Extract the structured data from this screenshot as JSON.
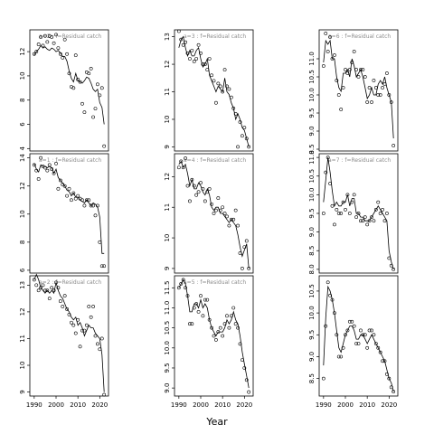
{
  "figure": {
    "xlabel": "Year"
  },
  "chart_data": [
    {
      "type": "line",
      "title": "a=2  :  f=Residual catch",
      "xlim": [
        1988,
        2024
      ],
      "ylim": [
        3.8,
        13.8
      ],
      "yticks": [
        4,
        6,
        8,
        10,
        12
      ],
      "x": [
        1990,
        1991,
        1992,
        1993,
        1994,
        1995,
        1996,
        1997,
        1998,
        1999,
        2000,
        2001,
        2002,
        2003,
        2004,
        2005,
        2006,
        2007,
        2008,
        2009,
        2010,
        2011,
        2012,
        2013,
        2014,
        2015,
        2016,
        2017,
        2018,
        2019,
        2020,
        2021,
        2022
      ],
      "observed": [
        11.8,
        12.0,
        12.6,
        13.2,
        12.5,
        13.3,
        12.8,
        13.3,
        13.2,
        12.7,
        13.4,
        12.3,
        11.8,
        11.5,
        13.0,
        11.8,
        10.2,
        9.1,
        9.0,
        11.7,
        9.7,
        9.5,
        7.7,
        7.0,
        10.3,
        10.2,
        10.6,
        6.6,
        7.3,
        9.3,
        8.4,
        9.0,
        4.2
      ],
      "fitted": [
        11.7,
        12.0,
        12.2,
        12.5,
        12.3,
        12.4,
        12.2,
        12.1,
        12.3,
        12.2,
        12.0,
        12.1,
        11.9,
        11.6,
        11.6,
        11.2,
        10.4,
        9.8,
        9.5,
        10.2,
        9.6,
        9.5,
        9.4,
        9.6,
        9.9,
        9.8,
        9.4,
        8.9,
        8.7,
        8.9,
        7.8,
        7.4,
        6.0
      ]
    },
    {
      "type": "line",
      "title": "a=3  :  f=Residual catch",
      "xlim": [
        1988,
        2024
      ],
      "ylim": [
        8.85,
        13.25
      ],
      "yticks": [
        9,
        10,
        11,
        12,
        13
      ],
      "x": [
        1990,
        1991,
        1992,
        1993,
        1994,
        1995,
        1996,
        1997,
        1998,
        1999,
        2000,
        2001,
        2002,
        2003,
        2004,
        2005,
        2006,
        2007,
        2008,
        2009,
        2010,
        2011,
        2012,
        2013,
        2014,
        2015,
        2016,
        2017,
        2018,
        2019,
        2020,
        2021,
        2022
      ],
      "observed": [
        13.2,
        12.9,
        12.7,
        12.8,
        12.4,
        12.2,
        12.5,
        12.1,
        12.2,
        12.7,
        12.4,
        12.0,
        12.0,
        11.8,
        12.2,
        11.6,
        11.4,
        10.6,
        11.3,
        11.2,
        11.0,
        11.8,
        11.2,
        11.1,
        10.8,
        10.4,
        10.2,
        9.0,
        9.9,
        9.4,
        9.7,
        9.3,
        9.0
      ],
      "fitted": [
        12.6,
        12.9,
        13.0,
        12.6,
        12.3,
        12.5,
        12.3,
        12.3,
        12.5,
        12.6,
        12.2,
        11.9,
        12.0,
        12.2,
        11.6,
        11.4,
        11.2,
        11.0,
        11.2,
        11.1,
        11.0,
        11.5,
        11.0,
        10.9,
        10.6,
        10.4,
        10.0,
        10.2,
        10.0,
        9.7,
        9.6,
        9.3,
        9.0
      ]
    },
    {
      "type": "line",
      "title": "a=6  :  f=Residual catch",
      "xlim": [
        1988,
        2024
      ],
      "ylim": [
        8.45,
        11.8
      ],
      "yticks": [
        8.5,
        9.0,
        9.5,
        10.0,
        10.5,
        11.0
      ],
      "x": [
        1990,
        1991,
        1992,
        1993,
        1994,
        1995,
        1996,
        1997,
        1998,
        1999,
        2000,
        2001,
        2002,
        2003,
        2004,
        2005,
        2006,
        2007,
        2008,
        2009,
        2010,
        2011,
        2012,
        2013,
        2014,
        2015,
        2016,
        2017,
        2018,
        2019,
        2020,
        2021,
        2022
      ],
      "observed": [
        10.8,
        11.7,
        11.2,
        11.6,
        11.0,
        11.1,
        10.4,
        10.0,
        9.6,
        10.2,
        10.7,
        10.6,
        10.7,
        10.9,
        11.2,
        10.7,
        10.5,
        10.7,
        10.7,
        10.5,
        9.8,
        10.2,
        9.8,
        10.4,
        10.2,
        10.0,
        10.0,
        10.2,
        10.3,
        10.6,
        10.0,
        9.8,
        8.6
      ],
      "fitted": [
        10.9,
        11.5,
        11.4,
        11.5,
        11.0,
        11.0,
        10.5,
        10.2,
        10.1,
        10.6,
        10.6,
        10.7,
        10.5,
        11.0,
        10.8,
        10.5,
        10.6,
        10.7,
        10.5,
        10.2,
        9.9,
        10.0,
        10.2,
        10.0,
        10.0,
        10.3,
        10.4,
        10.3,
        10.5,
        10.2,
        10.0,
        9.8,
        8.8
      ]
    },
    {
      "type": "line",
      "title": "a=1  :  f=Residual catch",
      "xlim": [
        1988,
        2024
      ],
      "ylim": [
        5.8,
        14.3
      ],
      "yticks": [
        6,
        8,
        10,
        12,
        14
      ],
      "x": [
        1990,
        1991,
        1992,
        1993,
        1994,
        1995,
        1996,
        1997,
        1998,
        1999,
        2000,
        2001,
        2002,
        2003,
        2004,
        2005,
        2006,
        2007,
        2008,
        2009,
        2010,
        2011,
        2012,
        2013,
        2014,
        2015,
        2016,
        2017,
        2018,
        2019,
        2020,
        2021,
        2022
      ],
      "observed": [
        13.5,
        13.1,
        12.5,
        14.0,
        13.4,
        13.3,
        13.1,
        13.5,
        13.2,
        12.9,
        13.6,
        11.8,
        12.4,
        12.1,
        12.0,
        11.3,
        11.8,
        11.0,
        11.5,
        11.1,
        11.3,
        11.1,
        11.0,
        10.6,
        11.0,
        11.0,
        10.6,
        10.6,
        9.9,
        10.6,
        8.0,
        6.3,
        6.3
      ],
      "fitted": [
        13.6,
        13.2,
        13.0,
        13.5,
        13.4,
        13.4,
        13.3,
        13.4,
        13.3,
        12.9,
        13.2,
        12.6,
        12.4,
        12.2,
        12.0,
        11.7,
        11.6,
        11.3,
        11.5,
        11.2,
        11.2,
        11.0,
        10.9,
        10.8,
        11.0,
        10.8,
        10.6,
        10.8,
        10.7,
        10.5,
        9.8,
        7.2,
        7.2
      ]
    },
    {
      "type": "line",
      "title": "a=4  :  f=Residual catch",
      "xlim": [
        1988,
        2024
      ],
      "ylim": [
        8.85,
        12.75
      ],
      "yticks": [
        9,
        10,
        11,
        12
      ],
      "x": [
        1990,
        1991,
        1992,
        1993,
        1994,
        1995,
        1996,
        1997,
        1998,
        1999,
        2000,
        2001,
        2002,
        2003,
        2004,
        2005,
        2006,
        2007,
        2008,
        2009,
        2010,
        2011,
        2012,
        2013,
        2014,
        2015,
        2016,
        2017,
        2018,
        2019,
        2020,
        2021,
        2022
      ],
      "observed": [
        12.3,
        12.5,
        12.3,
        12.6,
        11.7,
        11.2,
        11.9,
        11.7,
        11.4,
        11.5,
        11.8,
        11.6,
        11.2,
        11.5,
        11.6,
        11.1,
        10.8,
        10.9,
        11.3,
        10.9,
        11.0,
        10.8,
        10.7,
        10.4,
        10.6,
        10.6,
        10.9,
        10.4,
        9.5,
        9.0,
        9.7,
        9.9,
        9.0
      ],
      "fitted": [
        12.4,
        12.5,
        12.3,
        12.4,
        12.1,
        11.7,
        11.9,
        11.6,
        11.6,
        11.8,
        11.7,
        11.5,
        11.4,
        11.6,
        11.4,
        11.0,
        10.9,
        11.0,
        11.0,
        10.8,
        10.8,
        10.7,
        10.6,
        10.5,
        10.6,
        10.5,
        10.4,
        10.1,
        9.7,
        9.4,
        9.6,
        9.8,
        9.0
      ]
    },
    {
      "type": "line",
      "title": "a=7  :  f=Residual catch",
      "xlim": [
        1988,
        2024
      ],
      "ylim": [
        7.9,
        11.1
      ],
      "yticks": [
        8.0,
        8.5,
        9.0,
        9.5,
        10.0,
        10.5,
        11.0
      ],
      "x": [
        1990,
        1991,
        1992,
        1993,
        1994,
        1995,
        1996,
        1997,
        1998,
        1999,
        2000,
        2001,
        2002,
        2003,
        2004,
        2005,
        2006,
        2007,
        2008,
        2009,
        2010,
        2011,
        2012,
        2013,
        2014,
        2015,
        2016,
        2017,
        2018,
        2019,
        2020,
        2021,
        2022
      ],
      "observed": [
        9.5,
        10.6,
        11.0,
        10.3,
        9.7,
        9.2,
        9.6,
        9.5,
        9.5,
        9.8,
        9.6,
        10.0,
        9.5,
        9.8,
        10.0,
        9.4,
        9.5,
        9.3,
        9.3,
        9.4,
        9.2,
        9.3,
        9.4,
        9.3,
        9.6,
        9.8,
        9.5,
        9.6,
        9.3,
        9.5,
        8.3,
        8.1,
        8.0
      ],
      "fitted": [
        9.8,
        10.4,
        11.0,
        10.6,
        10.1,
        9.7,
        9.8,
        9.7,
        9.7,
        9.8,
        9.8,
        10.0,
        9.7,
        9.9,
        9.9,
        9.5,
        9.5,
        9.4,
        9.4,
        9.3,
        9.3,
        9.3,
        9.4,
        9.5,
        9.6,
        9.7,
        9.6,
        9.5,
        9.4,
        9.3,
        8.5,
        8.2,
        8.0
      ]
    },
    {
      "type": "line",
      "title": "a=2  :  f=Residual catch",
      "xlim": [
        1988,
        2024
      ],
      "ylim": [
        8.85,
        13.35
      ],
      "yticks": [
        9,
        10,
        11,
        12,
        13
      ],
      "x": [
        1990,
        1991,
        1992,
        1993,
        1994,
        1995,
        1996,
        1997,
        1998,
        1999,
        2000,
        2001,
        2002,
        2003,
        2004,
        2005,
        2006,
        2007,
        2008,
        2009,
        2010,
        2011,
        2012,
        2013,
        2014,
        2015,
        2016,
        2017,
        2018,
        2019,
        2020,
        2021,
        2022
      ],
      "observed": [
        13.2,
        13.0,
        12.8,
        12.9,
        13.0,
        12.8,
        12.8,
        12.5,
        12.9,
        12.8,
        13.1,
        12.9,
        12.4,
        12.2,
        12.6,
        12.1,
        11.9,
        11.6,
        11.5,
        11.2,
        11.7,
        10.7,
        11.3,
        11.3,
        11.5,
        12.2,
        11.8,
        12.2,
        11.1,
        10.8,
        10.6,
        11.0,
        8.9
      ],
      "fitted": [
        13.2,
        13.4,
        13.2,
        12.9,
        12.8,
        12.7,
        12.8,
        12.7,
        12.8,
        12.7,
        13.1,
        12.8,
        12.6,
        12.5,
        12.3,
        12.1,
        12.0,
        11.8,
        11.7,
        11.8,
        11.5,
        11.6,
        11.4,
        11.1,
        11.3,
        11.5,
        11.4,
        11.4,
        11.2,
        11.1,
        11.0,
        10.4,
        9.0
      ]
    },
    {
      "type": "line",
      "title": "a=5  :  f=Residual catch",
      "xlim": [
        1988,
        2024
      ],
      "ylim": [
        8.8,
        11.8
      ],
      "yticks": [
        9.0,
        9.5,
        10.0,
        10.5,
        11.0,
        11.5
      ],
      "x": [
        1990,
        1991,
        1992,
        1993,
        1994,
        1995,
        1996,
        1997,
        1998,
        1999,
        2000,
        2001,
        2002,
        2003,
        2004,
        2005,
        2006,
        2007,
        2008,
        2009,
        2010,
        2011,
        2012,
        2013,
        2014,
        2015,
        2016,
        2017,
        2018,
        2019,
        2020,
        2021,
        2022
      ],
      "observed": [
        11.5,
        11.6,
        11.7,
        11.5,
        11.3,
        10.6,
        10.6,
        11.0,
        11.1,
        10.9,
        11.3,
        10.8,
        11.2,
        11.2,
        10.7,
        10.5,
        10.3,
        10.2,
        10.4,
        10.5,
        10.3,
        10.6,
        10.8,
        10.5,
        10.8,
        11.0,
        10.6,
        10.5,
        10.1,
        9.7,
        9.5,
        9.2,
        8.9
      ],
      "fitted": [
        11.5,
        11.6,
        11.7,
        11.6,
        11.3,
        10.9,
        10.9,
        11.1,
        11.1,
        11.0,
        11.2,
        11.0,
        11.1,
        11.0,
        10.7,
        10.5,
        10.4,
        10.3,
        10.4,
        10.4,
        10.4,
        10.5,
        10.7,
        10.6,
        10.7,
        10.9,
        10.7,
        10.6,
        10.3,
        9.9,
        9.6,
        9.3,
        9.0
      ]
    },
    {
      "type": "line",
      "title": "",
      "xlim": [
        1988,
        2024
      ],
      "ylim": [
        8.1,
        10.85
      ],
      "yticks": [
        8.5,
        9.0,
        9.5,
        10.0,
        10.5
      ],
      "x": [
        1990,
        1991,
        1992,
        1993,
        1994,
        1995,
        1996,
        1997,
        1998,
        1999,
        2000,
        2001,
        2002,
        2003,
        2004,
        2005,
        2006,
        2007,
        2008,
        2009,
        2010,
        2011,
        2012,
        2013,
        2014,
        2015,
        2016,
        2017,
        2018,
        2019,
        2020,
        2021,
        2022
      ],
      "observed": [
        8.5,
        9.7,
        10.7,
        10.4,
        10.3,
        10.0,
        9.5,
        9.0,
        9.0,
        9.2,
        9.5,
        9.6,
        9.8,
        9.8,
        9.7,
        9.3,
        9.3,
        9.6,
        9.5,
        9.5,
        9.2,
        9.6,
        9.6,
        9.5,
        9.3,
        9.2,
        9.1,
        8.9,
        8.9,
        8.6,
        8.5,
        8.3,
        8.2
      ],
      "fitted": [
        8.8,
        9.9,
        10.6,
        10.5,
        10.3,
        10.0,
        9.6,
        9.2,
        9.1,
        9.3,
        9.5,
        9.6,
        9.7,
        9.7,
        9.6,
        9.4,
        9.4,
        9.5,
        9.5,
        9.4,
        9.3,
        9.4,
        9.5,
        9.4,
        9.3,
        9.2,
        9.1,
        9.0,
        8.9,
        8.7,
        8.5,
        8.4,
        8.2
      ]
    }
  ],
  "colors": {
    "axis": "#000000",
    "title": "#8c8c8c",
    "line": "#000000",
    "point": "#000000"
  }
}
